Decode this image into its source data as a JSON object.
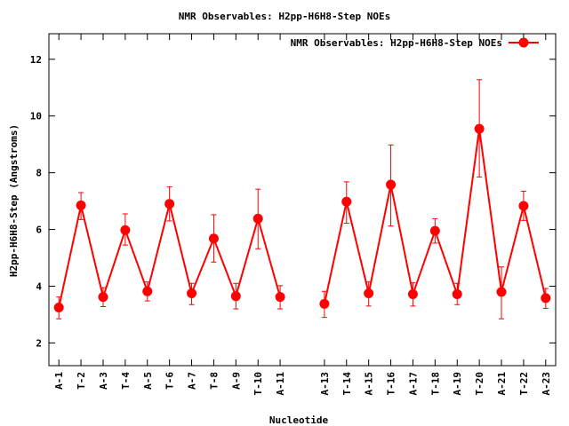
{
  "chart_data": {
    "type": "line",
    "title": "NMR Observables: H2pp-H6H8-Step NOEs",
    "xlabel": "Nucleotide",
    "ylabel": "H2pp-H6H8-Step (Angstroms)",
    "ylim": [
      1.2,
      12.9
    ],
    "yticks": [
      2,
      4,
      6,
      8,
      10,
      12
    ],
    "grid": false,
    "legend_position": "top-right",
    "series_color": "#ff0000",
    "categories": [
      "A-1",
      "T-2",
      "A-3",
      "T-4",
      "A-5",
      "T-6",
      "A-7",
      "T-8",
      "A-9",
      "T-10",
      "A-11",
      "A-13",
      "T-14",
      "A-15",
      "T-16",
      "A-17",
      "T-18",
      "A-19",
      "T-20",
      "A-21",
      "T-22",
      "A-23"
    ],
    "positions": [
      1,
      2,
      3,
      4,
      5,
      6,
      7,
      8,
      9,
      10,
      11,
      13,
      14,
      15,
      16,
      17,
      18,
      19,
      20,
      21,
      22,
      23
    ],
    "series": [
      {
        "name": "NMR Observables: H2pp-H6H8-Step NOEs",
        "segments": [
          [
            {
              "x": 1,
              "y": 3.25,
              "err_low": 2.85,
              "err_high": 3.62
            },
            {
              "x": 2,
              "y": 6.85,
              "err_low": 6.35,
              "err_high": 7.3
            },
            {
              "x": 3,
              "y": 3.62,
              "err_low": 3.28,
              "err_high": 3.95
            },
            {
              "x": 4,
              "y": 5.98,
              "err_low": 5.45,
              "err_high": 6.55
            },
            {
              "x": 5,
              "y": 3.82,
              "err_low": 3.48,
              "err_high": 4.15
            },
            {
              "x": 6,
              "y": 6.9,
              "err_low": 6.3,
              "err_high": 7.5
            },
            {
              "x": 7,
              "y": 3.75,
              "err_low": 3.35,
              "err_high": 4.1
            },
            {
              "x": 8,
              "y": 5.68,
              "err_low": 4.85,
              "err_high": 6.52
            },
            {
              "x": 9,
              "y": 3.65,
              "err_low": 3.2,
              "err_high": 4.1
            },
            {
              "x": 10,
              "y": 6.38,
              "err_low": 5.32,
              "err_high": 7.42
            },
            {
              "x": 11,
              "y": 3.62,
              "err_low": 3.2,
              "err_high": 4.02
            }
          ],
          [
            {
              "x": 13,
              "y": 3.38,
              "err_low": 2.9,
              "err_high": 3.82
            },
            {
              "x": 14,
              "y": 6.98,
              "err_low": 6.22,
              "err_high": 7.68
            },
            {
              "x": 15,
              "y": 3.75,
              "err_low": 3.3,
              "err_high": 4.15
            },
            {
              "x": 16,
              "y": 7.58,
              "err_low": 6.12,
              "err_high": 8.98
            },
            {
              "x": 17,
              "y": 3.72,
              "err_low": 3.3,
              "err_high": 4.12
            },
            {
              "x": 18,
              "y": 5.95,
              "err_low": 5.52,
              "err_high": 6.38
            },
            {
              "x": 19,
              "y": 3.72,
              "err_low": 3.35,
              "err_high": 4.1
            },
            {
              "x": 20,
              "y": 9.55,
              "err_low": 7.85,
              "err_high": 11.28
            },
            {
              "x": 21,
              "y": 3.8,
              "err_low": 2.85,
              "err_high": 4.68
            },
            {
              "x": 22,
              "y": 6.83,
              "err_low": 6.32,
              "err_high": 7.35
            },
            {
              "x": 23,
              "y": 3.58,
              "err_low": 3.22,
              "err_high": 3.92
            }
          ]
        ]
      }
    ]
  }
}
